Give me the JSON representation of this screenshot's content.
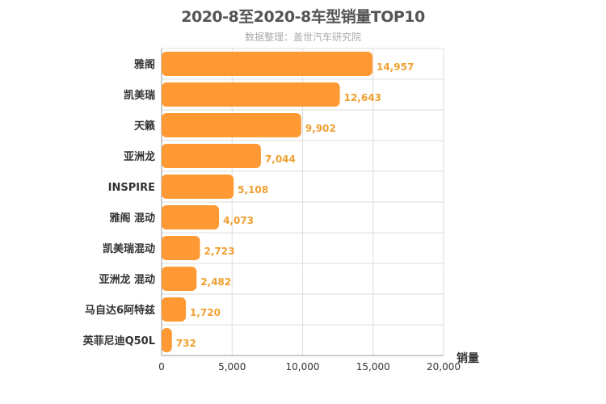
{
  "chart_data": {
    "type": "bar",
    "orientation": "horizontal",
    "title": "2020-8至2020-8车型销量TOP10",
    "subtitle": "数据整理：盖世汽车研究院",
    "xlabel": "销量",
    "categories": [
      "雅阁",
      "凯美瑞",
      "天籁",
      "亚洲龙",
      "INSPIRE",
      "雅阁 混动",
      "凯美瑞混动",
      "亚洲龙 混动",
      "马自达6阿特兹",
      "英菲尼迪Q50L"
    ],
    "values": [
      14957,
      12643,
      9902,
      7044,
      5108,
      4073,
      2723,
      2482,
      1720,
      732
    ],
    "value_labels": [
      "14,957",
      "12,643",
      "9,902",
      "7,044",
      "5,108",
      "4,073",
      "2,723",
      "2,482",
      "1,720",
      "732"
    ],
    "xlim": [
      0,
      20000
    ],
    "xticks": [
      0,
      5000,
      10000,
      15000,
      20000
    ],
    "xtick_labels": [
      "0",
      "5,000",
      "10,000",
      "15,000",
      "20,000"
    ],
    "grid": true,
    "bar_color": "#ff9933",
    "value_label_color": "#f0a030"
  }
}
